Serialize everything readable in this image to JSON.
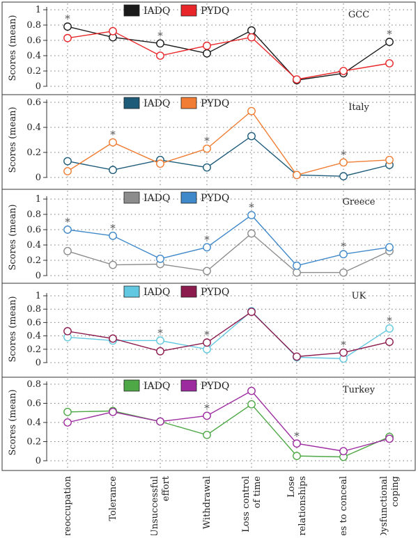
{
  "chart_data": [
    {
      "type": "line",
      "title": "GCC",
      "ylabel": "Scores (mean)",
      "ylim": [
        0,
        1
      ],
      "yticks": [
        0,
        0.2,
        0.4,
        0.6,
        0.8,
        1
      ],
      "ytick_labels": [
        "0",
        "0.2",
        "0.4",
        "0.6",
        "0.8",
        "1"
      ],
      "grid": true,
      "legend_position": "top-center",
      "series": [
        {
          "name": "IADQ",
          "color": "#1a1a1a",
          "values": [
            0.78,
            0.64,
            0.56,
            0.43,
            0.73,
            0.08,
            0.17,
            0.58
          ]
        },
        {
          "name": "PYDQ",
          "color": "#e8262a",
          "values": [
            0.63,
            0.72,
            0.4,
            0.53,
            0.64,
            0.09,
            0.2,
            0.3
          ]
        }
      ],
      "annotations": [
        {
          "category_index": 0,
          "text": "*",
          "value": 0.78
        },
        {
          "category_index": 2,
          "text": "*",
          "value": 0.56
        },
        {
          "category_index": 7,
          "text": "*",
          "value": 0.58
        }
      ]
    },
    {
      "type": "line",
      "title": "Italy",
      "ylabel": "Scores (mean)",
      "ylim": [
        0,
        0.6
      ],
      "yticks": [
        0,
        0.2,
        0.4,
        0.6
      ],
      "ytick_labels": [
        "0",
        "0.2",
        "0.4",
        "0.6"
      ],
      "grid": true,
      "legend_position": "top-center",
      "series": [
        {
          "name": "IADQ",
          "color": "#1d5b79",
          "values": [
            0.13,
            0.06,
            0.14,
            0.08,
            0.33,
            0.02,
            0.01,
            0.1
          ]
        },
        {
          "name": "PYDQ",
          "color": "#f07d33",
          "values": [
            0.05,
            0.28,
            0.11,
            0.23,
            0.53,
            0.02,
            0.12,
            0.14
          ]
        }
      ],
      "annotations": [
        {
          "category_index": 1,
          "text": "*",
          "value": 0.28
        },
        {
          "category_index": 3,
          "text": "*",
          "value": 0.23
        },
        {
          "category_index": 6,
          "text": "*",
          "value": 0.12
        }
      ]
    },
    {
      "type": "line",
      "title": "Greece",
      "ylabel": "Scores (mean)",
      "ylim": [
        0,
        1
      ],
      "yticks": [
        0,
        0.2,
        0.4,
        0.6,
        0.8,
        1
      ],
      "ytick_labels": [
        "0",
        "0.2",
        "0.4",
        "0.6",
        "0.8",
        "1"
      ],
      "grid": true,
      "legend_position": "top-center",
      "series": [
        {
          "name": "IADQ",
          "color": "#8c8c8c",
          "values": [
            0.32,
            0.14,
            0.15,
            0.06,
            0.55,
            0.04,
            0.04,
            0.32
          ]
        },
        {
          "name": "PYDQ",
          "color": "#3f88c9",
          "values": [
            0.6,
            0.52,
            0.22,
            0.37,
            0.79,
            0.13,
            0.28,
            0.37
          ]
        }
      ],
      "annotations": [
        {
          "category_index": 0,
          "text": "*",
          "value": 0.6
        },
        {
          "category_index": 1,
          "text": "*",
          "value": 0.52
        },
        {
          "category_index": 3,
          "text": "*",
          "value": 0.37
        },
        {
          "category_index": 4,
          "text": "*",
          "value": 0.79
        },
        {
          "category_index": 6,
          "text": "*",
          "value": 0.28
        }
      ]
    },
    {
      "type": "line",
      "title": "UK",
      "ylabel": "Scores (mean)",
      "ylim": [
        0,
        1
      ],
      "yticks": [
        0,
        0.2,
        0.4,
        0.6,
        0.8,
        1
      ],
      "ytick_labels": [
        "0",
        "0.2",
        "0.4",
        "0.6",
        "0.8",
        "1"
      ],
      "grid": true,
      "legend_position": "top-center",
      "series": [
        {
          "name": "IADQ",
          "color": "#62c7e0",
          "values": [
            0.38,
            0.33,
            0.33,
            0.2,
            0.77,
            0.08,
            0.06,
            0.51
          ]
        },
        {
          "name": "PYDQ",
          "color": "#8b1a4d",
          "values": [
            0.47,
            0.36,
            0.17,
            0.3,
            0.76,
            0.09,
            0.15,
            0.31
          ]
        }
      ],
      "annotations": [
        {
          "category_index": 2,
          "text": "*",
          "value": 0.33
        },
        {
          "category_index": 3,
          "text": "*",
          "value": 0.3
        },
        {
          "category_index": 6,
          "text": "*",
          "value": 0.15
        },
        {
          "category_index": 7,
          "text": "*",
          "value": 0.51
        }
      ]
    },
    {
      "type": "line",
      "title": "Turkey",
      "ylabel": "Scores (mean)",
      "ylim": [
        0,
        0.8
      ],
      "yticks": [
        0,
        0.2,
        0.4,
        0.6,
        0.8
      ],
      "ytick_labels": [
        "0",
        "0.2",
        "0.4",
        "0.6",
        "0.8"
      ],
      "grid": true,
      "legend_position": "top-center",
      "series": [
        {
          "name": "IADQ",
          "color": "#4fa846",
          "values": [
            0.51,
            0.52,
            0.41,
            0.27,
            0.59,
            0.05,
            0.04,
            0.25
          ]
        },
        {
          "name": "PYDQ",
          "color": "#9b2b9e",
          "values": [
            0.4,
            0.51,
            0.41,
            0.47,
            0.73,
            0.18,
            0.1,
            0.23
          ]
        }
      ],
      "annotations": [
        {
          "category_index": 3,
          "text": "*",
          "value": 0.47
        },
        {
          "category_index": 5,
          "text": "*",
          "value": 0.18
        }
      ]
    }
  ],
  "categories": [
    [
      "Preoccupation"
    ],
    [
      "Tolerance"
    ],
    [
      "Unsuccessful",
      "effort"
    ],
    [
      "Withdrawal"
    ],
    [
      "Loss control",
      "of time"
    ],
    [
      "Lose",
      "relationships"
    ],
    [
      "Lies to conceal"
    ],
    [
      "Dysfunctional",
      "coping"
    ]
  ]
}
